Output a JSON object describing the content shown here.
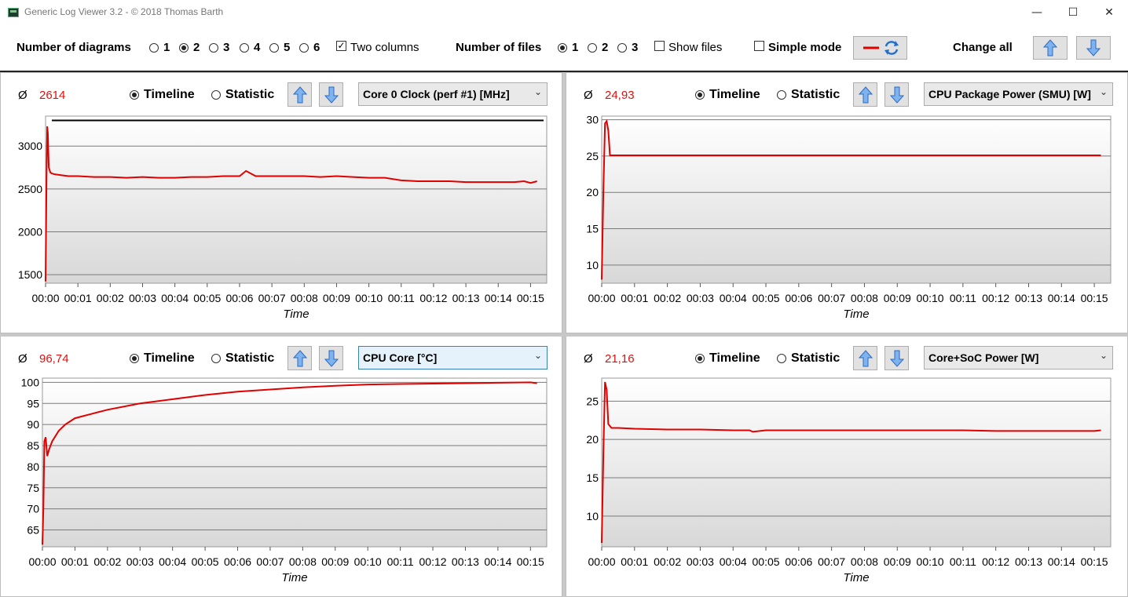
{
  "window": {
    "title": "Generic Log Viewer 3.2 - © 2018 Thomas Barth",
    "minimize": "—",
    "maximize": "☐",
    "close": "✕"
  },
  "toolbar": {
    "diagrams_label": "Number of diagrams",
    "diagram_options": [
      "1",
      "2",
      "3",
      "4",
      "5",
      "6"
    ],
    "diagram_selected": "2",
    "two_columns_label": "Two columns",
    "two_columns_checked": true,
    "files_label": "Number of files",
    "file_options": [
      "1",
      "2",
      "3"
    ],
    "file_selected": "1",
    "show_files_label": "Show files",
    "show_files_checked": false,
    "simple_mode_label": "Simple mode",
    "simple_mode_checked": false,
    "change_all_label": "Change all",
    "line_color": "#e00000",
    "refresh_icon": "refresh-icon",
    "up_icon": "arrow-up-icon",
    "down_icon": "arrow-down-icon"
  },
  "panels": [
    {
      "avg_symbol": "Ø",
      "avg_value": "2614",
      "timeline_label": "Timeline",
      "statistic_label": "Statistic",
      "mode": "Timeline",
      "sensor": "Core 0 Clock (perf #1) [MHz]",
      "x_title": "Time"
    },
    {
      "avg_symbol": "Ø",
      "avg_value": "24,93",
      "timeline_label": "Timeline",
      "statistic_label": "Statistic",
      "mode": "Timeline",
      "sensor": "CPU Package Power (SMU) [W]",
      "x_title": "Time"
    },
    {
      "avg_symbol": "Ø",
      "avg_value": "96,74",
      "timeline_label": "Timeline",
      "statistic_label": "Statistic",
      "mode": "Timeline",
      "sensor": "CPU Core [°C]",
      "x_title": "Time"
    },
    {
      "avg_symbol": "Ø",
      "avg_value": "21,16",
      "timeline_label": "Timeline",
      "statistic_label": "Statistic",
      "mode": "Timeline",
      "sensor": "Core+SoC Power [W]",
      "x_title": "Time"
    }
  ],
  "chart_data": [
    {
      "type": "line",
      "xlabel": "Time",
      "x_ticks": [
        "00:00",
        "00:01",
        "00:02",
        "00:03",
        "00:04",
        "00:05",
        "00:06",
        "00:07",
        "00:08",
        "00:09",
        "00:10",
        "00:11",
        "00:12",
        "00:13",
        "00:14",
        "00:15"
      ],
      "xlim": [
        0,
        15.5
      ],
      "ylim": [
        1400,
        3350
      ],
      "y_ticks": [
        1500,
        2000,
        2500,
        3000
      ],
      "max_line": 3300,
      "line_color": "#e00000",
      "x": [
        0,
        0.03,
        0.05,
        0.07,
        0.1,
        0.15,
        0.2,
        0.3,
        0.5,
        0.7,
        1.0,
        1.5,
        2.0,
        2.5,
        3.0,
        3.5,
        4.0,
        4.5,
        5.0,
        5.5,
        6.0,
        6.2,
        6.5,
        7.0,
        7.5,
        8.0,
        8.5,
        9.0,
        9.5,
        10.0,
        10.5,
        11.0,
        11.5,
        12.0,
        12.5,
        13.0,
        13.5,
        14.0,
        14.5,
        14.8,
        15.0,
        15.2
      ],
      "y": [
        1420,
        2600,
        3230,
        3150,
        2750,
        2690,
        2680,
        2670,
        2660,
        2650,
        2650,
        2640,
        2640,
        2630,
        2640,
        2630,
        2630,
        2640,
        2640,
        2650,
        2650,
        2710,
        2650,
        2650,
        2650,
        2650,
        2640,
        2650,
        2640,
        2630,
        2630,
        2600,
        2590,
        2590,
        2590,
        2580,
        2580,
        2580,
        2580,
        2590,
        2570,
        2590
      ]
    },
    {
      "type": "line",
      "xlabel": "Time",
      "x_ticks": [
        "00:00",
        "00:01",
        "00:02",
        "00:03",
        "00:04",
        "00:05",
        "00:06",
        "00:07",
        "00:08",
        "00:09",
        "00:10",
        "00:11",
        "00:12",
        "00:13",
        "00:14",
        "00:15"
      ],
      "xlim": [
        0,
        15.5
      ],
      "ylim": [
        7.5,
        30.5
      ],
      "y_ticks": [
        10,
        15,
        20,
        25,
        30
      ],
      "line_color": "#e00000",
      "x": [
        0,
        0.05,
        0.1,
        0.15,
        0.2,
        0.25,
        0.3,
        0.5,
        1.0,
        2.0,
        4.0,
        6.0,
        8.0,
        10.0,
        12.0,
        14.0,
        15.2
      ],
      "y": [
        8.0,
        20.0,
        29.5,
        29.8,
        28.5,
        25.1,
        25.1,
        25.1,
        25.1,
        25.1,
        25.1,
        25.1,
        25.1,
        25.1,
        25.1,
        25.1,
        25.1
      ]
    },
    {
      "type": "line",
      "xlabel": "Time",
      "x_ticks": [
        "00:00",
        "00:01",
        "00:02",
        "00:03",
        "00:04",
        "00:05",
        "00:06",
        "00:07",
        "00:08",
        "00:09",
        "00:10",
        "00:11",
        "00:12",
        "00:13",
        "00:14",
        "00:15"
      ],
      "xlim": [
        0,
        15.5
      ],
      "ylim": [
        61,
        101
      ],
      "y_ticks": [
        65,
        70,
        75,
        80,
        85,
        90,
        95,
        100
      ],
      "line_color": "#e00000",
      "x": [
        0,
        0.03,
        0.06,
        0.1,
        0.15,
        0.2,
        0.3,
        0.5,
        0.7,
        1.0,
        1.5,
        2.0,
        3.0,
        4.0,
        5.0,
        6.0,
        7.0,
        8.0,
        9.0,
        10.0,
        11.0,
        12.0,
        13.0,
        14.0,
        15.0,
        15.2
      ],
      "y": [
        61.5,
        70,
        86,
        87,
        82.5,
        84,
        86,
        88.5,
        90,
        91.5,
        92.5,
        93.5,
        95,
        96,
        97,
        97.8,
        98.3,
        98.8,
        99.2,
        99.5,
        99.6,
        99.7,
        99.8,
        99.9,
        100,
        99.8
      ]
    },
    {
      "type": "line",
      "xlabel": "Time",
      "x_ticks": [
        "00:00",
        "00:01",
        "00:02",
        "00:03",
        "00:04",
        "00:05",
        "00:06",
        "00:07",
        "00:08",
        "00:09",
        "00:10",
        "00:11",
        "00:12",
        "00:13",
        "00:14",
        "00:15"
      ],
      "xlim": [
        0,
        15.5
      ],
      "ylim": [
        6,
        28
      ],
      "y_ticks": [
        10,
        15,
        20,
        25
      ],
      "line_color": "#e00000",
      "x": [
        0,
        0.05,
        0.1,
        0.15,
        0.2,
        0.3,
        0.5,
        1.0,
        2.0,
        3.0,
        4.0,
        4.5,
        4.6,
        5.0,
        6.0,
        7.0,
        8.0,
        9.0,
        10.0,
        11.0,
        12.0,
        13.0,
        14.0,
        15.0,
        15.2
      ],
      "y": [
        6.5,
        18,
        27.5,
        26.5,
        22,
        21.5,
        21.5,
        21.4,
        21.3,
        21.3,
        21.2,
        21.2,
        21.0,
        21.2,
        21.2,
        21.2,
        21.2,
        21.2,
        21.2,
        21.2,
        21.1,
        21.1,
        21.1,
        21.1,
        21.2
      ]
    }
  ]
}
